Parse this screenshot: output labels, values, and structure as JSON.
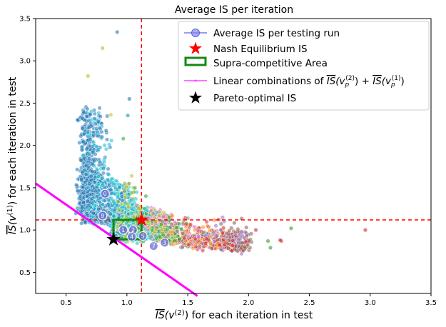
{
  "chart_data": {
    "type": "scatter",
    "title": "Average IS per iteration",
    "xlabel": {
      "prefix": "IS",
      "args": "(v",
      "sup": "(2)",
      "suffix": ") for each iteration in test"
    },
    "ylabel": {
      "prefix": "IS",
      "args": "(v",
      "sup": "(1)",
      "suffix": ") for each iteration in test"
    },
    "xlim": [
      0.25,
      3.5
    ],
    "ylim": [
      0.25,
      3.5
    ],
    "xticks": [
      0.5,
      1.0,
      1.5,
      2.0,
      2.5,
      3.0,
      3.5
    ],
    "yticks": [
      0.5,
      1.0,
      1.5,
      2.0,
      2.5,
      3.0,
      3.5
    ],
    "tick_labels": [
      "0.5",
      "1.0",
      "1.5",
      "2.0",
      "2.5",
      "3.0",
      "3.5"
    ],
    "legend_position": "top-right",
    "legend": [
      {
        "key": "avg",
        "label": "Average IS per testing run"
      },
      {
        "key": "nash",
        "label": "Nash Equilibrium IS"
      },
      {
        "key": "supra",
        "label": "Supra-competitive Area"
      },
      {
        "key": "linear",
        "label": "Linear combinations of IS(v_p^(2)) + IS(v_p^(1))"
      },
      {
        "key": "pareto",
        "label": "Pareto-optimal IS"
      }
    ],
    "legend_linear": {
      "lead": "Linear combinations of ",
      "is": "IS",
      "v": "(v",
      "p": "p",
      "sup2": "(2)",
      "sup1": "(1)",
      "plus": ") + ",
      "close": ")"
    },
    "nash_equilibrium": {
      "x": 1.12,
      "y": 1.12
    },
    "pareto_optimal": {
      "x": 0.89,
      "y": 0.89
    },
    "supra_competitive_area": {
      "x": [
        0.89,
        1.12
      ],
      "y": [
        0.89,
        1.12
      ]
    },
    "linear_combination_line": {
      "x": [
        0.25,
        1.58
      ],
      "y": [
        1.55,
        0.22
      ]
    },
    "cluster_model": {
      "description": "scattered average IS per testing run, one colour per iteration",
      "colors": [
        "#1f77b4",
        "#1f77b4",
        "#17becf",
        "#17becf",
        "#bcbd22",
        "#2ca02c",
        "#e377c2",
        "#7f7f7f",
        "#ff7f0e",
        "#d62728",
        "#9467bd",
        "#8c564b"
      ],
      "point_count": 2600
    },
    "labeled_iterations": [
      {
        "label": "0",
        "x": 0.82,
        "y": 1.43
      },
      {
        "label": "9",
        "x": 0.8,
        "y": 1.17
      },
      {
        "label": "1",
        "x": 0.97,
        "y": 1.0
      },
      {
        "label": "2",
        "x": 1.05,
        "y": 1.0
      },
      {
        "label": "4",
        "x": 1.04,
        "y": 0.92
      },
      {
        "label": "5",
        "x": 1.13,
        "y": 0.93
      },
      {
        "label": "7",
        "x": 1.22,
        "y": 0.81
      },
      {
        "label": "3",
        "x": 1.31,
        "y": 0.85
      }
    ],
    "outliers": [
      {
        "x": 0.92,
        "y": 3.34
      },
      {
        "x": 0.8,
        "y": 3.15
      },
      {
        "x": 1.02,
        "y": 2.55
      },
      {
        "x": 0.68,
        "y": 2.82
      },
      {
        "x": 2.96,
        "y": 1.0
      },
      {
        "x": 2.35,
        "y": 1.02
      },
      {
        "x": 2.06,
        "y": 1.0
      },
      {
        "x": 2.16,
        "y": 0.87
      },
      {
        "x": 2.27,
        "y": 0.87
      },
      {
        "x": 2.18,
        "y": 0.79
      },
      {
        "x": 2.26,
        "y": 0.88
      }
    ]
  }
}
